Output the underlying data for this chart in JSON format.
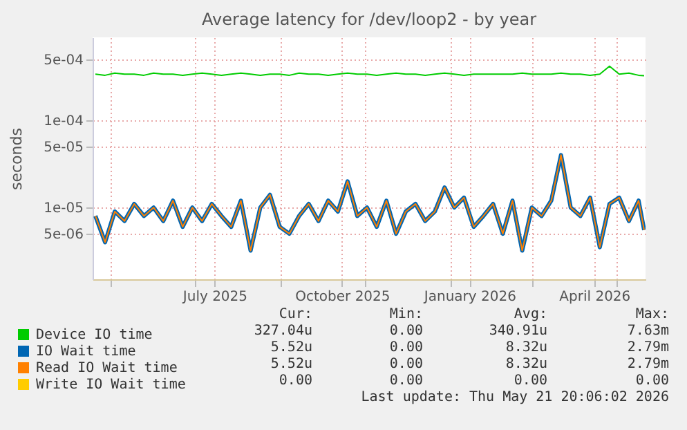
{
  "chart_data": {
    "type": "line",
    "title": "Average latency for /dev/loop2 - by year",
    "ylabel": "seconds",
    "x": [
      "2025-04-20",
      "2025-04-27",
      "2025-05-04",
      "2025-05-11",
      "2025-05-18",
      "2025-05-25",
      "2025-06-01",
      "2025-06-08",
      "2025-06-15",
      "2025-06-22",
      "2025-06-29",
      "2025-07-06",
      "2025-07-13",
      "2025-07-20",
      "2025-07-27",
      "2025-08-03",
      "2025-08-10",
      "2025-08-17",
      "2025-08-24",
      "2025-08-31",
      "2025-09-07",
      "2025-09-14",
      "2025-09-21",
      "2025-09-28",
      "2025-10-05",
      "2025-10-12",
      "2025-10-19",
      "2025-10-26",
      "2025-11-02",
      "2025-11-09",
      "2025-11-16",
      "2025-11-23",
      "2025-11-30",
      "2025-12-07",
      "2025-12-14",
      "2025-12-21",
      "2025-12-28",
      "2026-01-04",
      "2026-01-11",
      "2026-01-18",
      "2026-01-25",
      "2026-02-01",
      "2026-02-08",
      "2026-02-15",
      "2026-02-22",
      "2026-03-01",
      "2026-03-08",
      "2026-03-15",
      "2026-03-22",
      "2026-03-29",
      "2026-04-05",
      "2026-04-12",
      "2026-04-19",
      "2026-04-26",
      "2026-05-03",
      "2026-05-10",
      "2026-05-17",
      "2026-05-21"
    ],
    "series": [
      {
        "name": "Device IO time",
        "color": "#00cc00",
        "values": [
          0.00034,
          0.00033,
          0.00035,
          0.00034,
          0.00034,
          0.00033,
          0.00035,
          0.00034,
          0.00034,
          0.00033,
          0.00034,
          0.00035,
          0.00034,
          0.00033,
          0.00034,
          0.00035,
          0.00034,
          0.00033,
          0.00034,
          0.00034,
          0.00033,
          0.00035,
          0.00034,
          0.00034,
          0.00033,
          0.00034,
          0.00035,
          0.00034,
          0.00034,
          0.00033,
          0.00034,
          0.00035,
          0.00034,
          0.00034,
          0.00033,
          0.00034,
          0.00035,
          0.00034,
          0.00033,
          0.00034,
          0.00034,
          0.00034,
          0.00034,
          0.00034,
          0.00035,
          0.00034,
          0.00034,
          0.00034,
          0.00035,
          0.00034,
          0.00034,
          0.00033,
          0.00034,
          0.00042,
          0.00034,
          0.00035,
          0.00033,
          0.000327
        ]
      },
      {
        "name": "IO Wait time",
        "color": "#0066b3",
        "values": [
          8e-06,
          4e-06,
          9e-06,
          7e-06,
          1.1e-05,
          8e-06,
          1e-05,
          7e-06,
          1.2e-05,
          6e-06,
          1e-05,
          7e-06,
          1.1e-05,
          8e-06,
          6e-06,
          1.2e-05,
          3.2e-06,
          1e-05,
          1.4e-05,
          6e-06,
          5e-06,
          8e-06,
          1.1e-05,
          7e-06,
          1.2e-05,
          9e-06,
          2e-05,
          8e-06,
          1e-05,
          6e-06,
          1.2e-05,
          5e-06,
          9e-06,
          1.1e-05,
          7e-06,
          9e-06,
          1.7e-05,
          1e-05,
          1.3e-05,
          6e-06,
          8e-06,
          1.1e-05,
          5e-06,
          1.2e-05,
          3.2e-06,
          1e-05,
          8e-06,
          1.2e-05,
          4e-05,
          1e-05,
          8e-06,
          1.3e-05,
          3.5e-06,
          1.1e-05,
          1.3e-05,
          7e-06,
          1.2e-05,
          5.52e-06
        ]
      },
      {
        "name": "Read IO Wait time",
        "color": "#ff8000",
        "values": [
          8e-06,
          4e-06,
          9e-06,
          7e-06,
          1.1e-05,
          8e-06,
          1e-05,
          7e-06,
          1.2e-05,
          6e-06,
          1e-05,
          7e-06,
          1.1e-05,
          8e-06,
          6e-06,
          1.2e-05,
          3.2e-06,
          1e-05,
          1.4e-05,
          6e-06,
          5e-06,
          8e-06,
          1.1e-05,
          7e-06,
          1.2e-05,
          9e-06,
          2e-05,
          8e-06,
          1e-05,
          6e-06,
          1.2e-05,
          5e-06,
          9e-06,
          1.1e-05,
          7e-06,
          9e-06,
          1.7e-05,
          1e-05,
          1.3e-05,
          6e-06,
          8e-06,
          1.1e-05,
          5e-06,
          1.2e-05,
          3.2e-06,
          1e-05,
          8e-06,
          1.2e-05,
          4e-05,
          1e-05,
          8e-06,
          1.3e-05,
          3.5e-06,
          1.1e-05,
          1.3e-05,
          7e-06,
          1.2e-05,
          5.52e-06
        ]
      },
      {
        "name": "Write IO Wait time",
        "color": "#ffcc00",
        "values": [
          null,
          null,
          null,
          null,
          null,
          null,
          null,
          null,
          null,
          null,
          null,
          null,
          null,
          null,
          null,
          null,
          null,
          null,
          null,
          null,
          null,
          null,
          null,
          null,
          null,
          null,
          null,
          null,
          null,
          null,
          null,
          null,
          null,
          null,
          null,
          null,
          null,
          null,
          null,
          null,
          null,
          null,
          null,
          null,
          null,
          null,
          null,
          null,
          null,
          null,
          null,
          null,
          null,
          null,
          null,
          null,
          null,
          null
        ]
      }
    ],
    "xlim": [
      "2025-04-18",
      "2026-05-22"
    ],
    "xticks": [
      {
        "value": "2025-05-01",
        "label": null
      },
      {
        "value": "2025-07-01",
        "label": null
      },
      {
        "value": "2025-07-15",
        "label": "July 2025"
      },
      {
        "value": "2025-09-01",
        "label": null
      },
      {
        "value": "2025-10-15",
        "label": "October 2025"
      },
      {
        "value": "2025-11-01",
        "label": null
      },
      {
        "value": "2026-01-01",
        "label": null
      },
      {
        "value": "2026-01-15",
        "label": "January 2026"
      },
      {
        "value": "2026-03-01",
        "label": null
      },
      {
        "value": "2026-04-15",
        "label": "April 2026"
      },
      {
        "value": "2026-05-01",
        "label": null
      }
    ],
    "log": "y",
    "ylim": [
      1.5e-06,
      0.0009
    ],
    "yticks": [
      {
        "value": 5e-06,
        "label": "5e-06"
      },
      {
        "value": 1e-05,
        "label": "1e-05"
      },
      {
        "value": 5e-05,
        "label": "5e-05"
      },
      {
        "value": 0.0001,
        "label": "1e-04"
      },
      {
        "value": 0.0005,
        "label": "5e-04"
      }
    ],
    "grid": true,
    "legend": "bottom left",
    "marker": "none",
    "line_style": "solid",
    "annotations": [
      "Cur:",
      "Min:",
      "Avg:",
      "Max:",
      "327.04u",
      "0.00",
      "340.91u",
      "7.63m",
      "5.52u",
      "0.00",
      "8.32u",
      "2.79m",
      "5.52u",
      "0.00",
      "8.32u",
      "2.79m",
      "0.00",
      "0.00",
      "0.00",
      "0.00",
      "Last update: Thu May 21 20:06:02 2026"
    ]
  }
}
